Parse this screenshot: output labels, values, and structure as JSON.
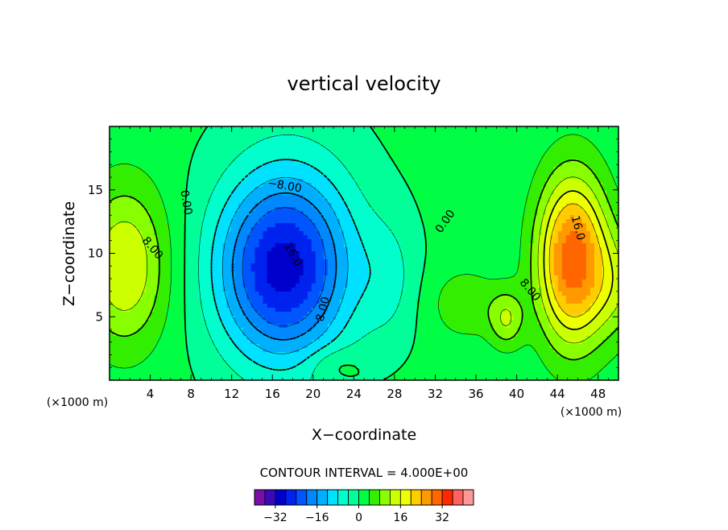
{
  "chart_data": {
    "type": "contour",
    "title": "vertical velocity",
    "xlabel": "X−coordinate",
    "ylabel": "Z−coordinate",
    "x_unit_left": "(×1000 m)",
    "x_unit_right": "(×1000 m)",
    "xlim": [
      0,
      50
    ],
    "ylim": [
      0,
      20
    ],
    "x_ticks": [
      4,
      8,
      12,
      16,
      20,
      24,
      28,
      32,
      36,
      40,
      44,
      48
    ],
    "y_ticks": [
      5,
      10,
      15
    ],
    "contour_interval_text": "CONTOUR INTERVAL = 4.000E+00",
    "contour_labels": [
      {
        "text": "0.00",
        "x": 7.5,
        "y": 14.0,
        "rot": 80
      },
      {
        "text": "8.00",
        "x": 4.2,
        "y": 10.4,
        "rot": 50
      },
      {
        "text": "−8.00",
        "x": 17.2,
        "y": 15.3,
        "rot": 10
      },
      {
        "text": "16.0",
        "x": 18.0,
        "y": 9.9,
        "rot": 60
      },
      {
        "text": "8.00",
        "x": 21.0,
        "y": 5.6,
        "rot": -75
      },
      {
        "text": "0.00",
        "x": 33.0,
        "y": 12.5,
        "rot": -55
      },
      {
        "text": "8.00",
        "x": 41.3,
        "y": 7.1,
        "rot": 50
      },
      {
        "text": "16.0",
        "x": 46.0,
        "y": 12.0,
        "rot": 75
      }
    ],
    "colorbar": {
      "levels": [
        -40,
        -36,
        -32,
        -28,
        -24,
        -20,
        -16,
        -12,
        -8,
        -4,
        0,
        4,
        8,
        12,
        16,
        20,
        24,
        28,
        32,
        36,
        40
      ],
      "colors": [
        "#7a0ea8",
        "#3a0ab8",
        "#0000cc",
        "#0022ee",
        "#0055ff",
        "#0088ff",
        "#00b0ff",
        "#00e0ff",
        "#00ffcc",
        "#00ff99",
        "#00ff44",
        "#33ee00",
        "#88ff00",
        "#ccff00",
        "#eeff00",
        "#ffcc00",
        "#ff9900",
        "#ff6600",
        "#ff2a00",
        "#ff6060",
        "#ff9999"
      ],
      "tick_labels": [
        "−32",
        "−16",
        "0",
        "16",
        "32"
      ]
    }
  }
}
